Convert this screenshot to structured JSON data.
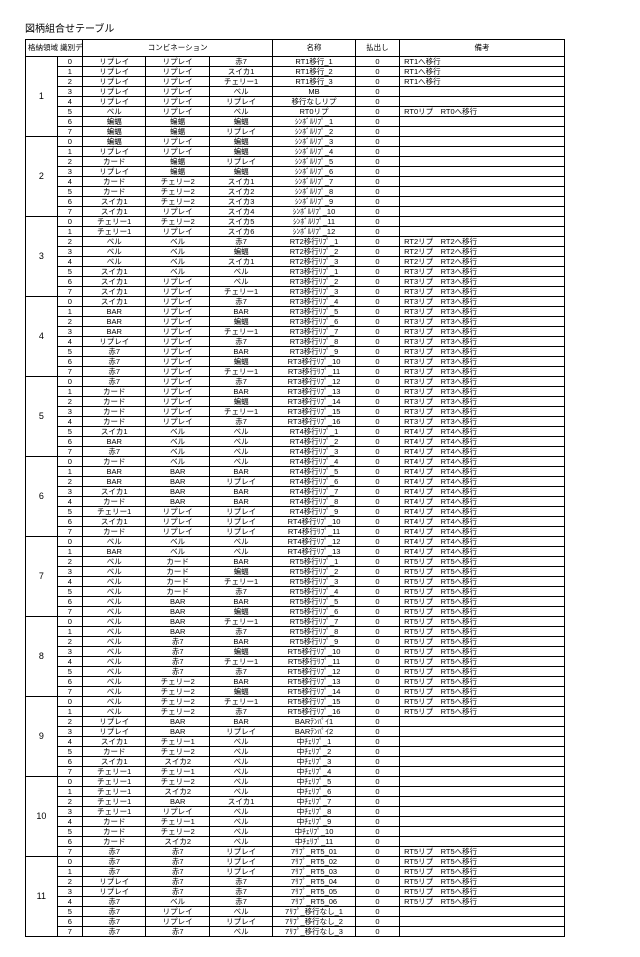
{
  "title": "図柄組合せテーブル",
  "headers": {
    "group": "格納領域\n識別データ",
    "combination": "コンビネーション",
    "name": "名称",
    "payout": "払出し",
    "remarks": "備考"
  },
  "groups": [
    {
      "id": "1",
      "rows": [
        {
          "i": "0",
          "c1": "リプレイ",
          "c2": "リプレイ",
          "c3": "赤7",
          "n": "RT1移行_1",
          "p": "0",
          "r": "RT1へ移行"
        },
        {
          "i": "1",
          "c1": "リプレイ",
          "c2": "リプレイ",
          "c3": "スイカ1",
          "n": "RT1移行_2",
          "p": "0",
          "r": "RT1へ移行"
        },
        {
          "i": "2",
          "c1": "リプレイ",
          "c2": "リプレイ",
          "c3": "チェリー1",
          "n": "RT1移行_3",
          "p": "0",
          "r": "RT1へ移行"
        },
        {
          "i": "3",
          "c1": "リプレイ",
          "c2": "リプレイ",
          "c3": "ベル",
          "n": "MB",
          "p": "0",
          "r": ""
        },
        {
          "i": "4",
          "c1": "リプレイ",
          "c2": "リプレイ",
          "c3": "リプレイ",
          "n": "移行なしリプ",
          "p": "0",
          "r": ""
        },
        {
          "i": "5",
          "c1": "ベル",
          "c2": "リプレイ",
          "c3": "ベル",
          "n": "RT0リプ",
          "p": "0",
          "r": "RT0リプ　RT0へ移行"
        },
        {
          "i": "6",
          "c1": "蝙蝠",
          "c2": "蝙蝠",
          "c3": "蝙蝠",
          "n": "ｼﾝﾎﾞﾙﾘﾌﾟ_1",
          "p": "0",
          "r": ""
        },
        {
          "i": "7",
          "c1": "蝙蝠",
          "c2": "蝙蝠",
          "c3": "リプレイ",
          "n": "ｼﾝﾎﾞﾙﾘﾌﾟ_2",
          "p": "0",
          "r": ""
        }
      ]
    },
    {
      "id": "2",
      "rows": [
        {
          "i": "0",
          "c1": "蝙蝠",
          "c2": "リプレイ",
          "c3": "蝙蝠",
          "n": "ｼﾝﾎﾞﾙﾘﾌﾟ_3",
          "p": "0",
          "r": ""
        },
        {
          "i": "1",
          "c1": "リプレイ",
          "c2": "リプレイ",
          "c3": "蝙蝠",
          "n": "ｼﾝﾎﾞﾙﾘﾌﾟ_4",
          "p": "0",
          "r": ""
        },
        {
          "i": "2",
          "c1": "カード",
          "c2": "蝙蝠",
          "c3": "リプレイ",
          "n": "ｼﾝﾎﾞﾙﾘﾌﾟ_5",
          "p": "0",
          "r": ""
        },
        {
          "i": "3",
          "c1": "リプレイ",
          "c2": "蝙蝠",
          "c3": "蝙蝠",
          "n": "ｼﾝﾎﾞﾙﾘﾌﾟ_6",
          "p": "0",
          "r": ""
        },
        {
          "i": "4",
          "c1": "カード",
          "c2": "チェリー2",
          "c3": "スイカ1",
          "n": "ｼﾝﾎﾞﾙﾘﾌﾟ_7",
          "p": "0",
          "r": ""
        },
        {
          "i": "5",
          "c1": "カード",
          "c2": "チェリー2",
          "c3": "スイカ2",
          "n": "ｼﾝﾎﾞﾙﾘﾌﾟ_8",
          "p": "0",
          "r": ""
        },
        {
          "i": "6",
          "c1": "スイカ1",
          "c2": "チェリー2",
          "c3": "スイカ3",
          "n": "ｼﾝﾎﾞﾙﾘﾌﾟ_9",
          "p": "0",
          "r": ""
        },
        {
          "i": "7",
          "c1": "スイカ1",
          "c2": "リプレイ",
          "c3": "スイカ4",
          "n": "ｼﾝﾎﾞﾙﾘﾌﾟ_10",
          "p": "0",
          "r": ""
        }
      ]
    },
    {
      "id": "3",
      "rows": [
        {
          "i": "0",
          "c1": "チェリー1",
          "c2": "チェリー2",
          "c3": "スイカ5",
          "n": "ｼﾝﾎﾞﾙﾘﾌﾟ_11",
          "p": "0",
          "r": ""
        },
        {
          "i": "1",
          "c1": "チェリー1",
          "c2": "リプレイ",
          "c3": "スイカ6",
          "n": "ｼﾝﾎﾞﾙﾘﾌﾟ_12",
          "p": "0",
          "r": ""
        },
        {
          "i": "2",
          "c1": "ベル",
          "c2": "ベル",
          "c3": "赤7",
          "n": "RT2移行ﾘﾌﾟ_1",
          "p": "0",
          "r": "RT2リプ　RT2へ移行"
        },
        {
          "i": "3",
          "c1": "ベル",
          "c2": "ベル",
          "c3": "蝙蝠",
          "n": "RT2移行ﾘﾌﾟ_2",
          "p": "0",
          "r": "RT2リプ　RT2へ移行"
        },
        {
          "i": "4",
          "c1": "ベル",
          "c2": "ベル",
          "c3": "スイカ1",
          "n": "RT2移行ﾘﾌﾟ_3",
          "p": "0",
          "r": "RT2リプ　RT2へ移行"
        },
        {
          "i": "5",
          "c1": "スイカ1",
          "c2": "ベル",
          "c3": "ベル",
          "n": "RT3移行ﾘﾌﾟ_1",
          "p": "0",
          "r": "RT3リプ　RT3へ移行"
        },
        {
          "i": "6",
          "c1": "スイカ1",
          "c2": "リプレイ",
          "c3": "ベル",
          "n": "RT3移行ﾘﾌﾟ_2",
          "p": "0",
          "r": "RT3リプ　RT3へ移行"
        },
        {
          "i": "7",
          "c1": "スイカ1",
          "c2": "リプレイ",
          "c3": "チェリー1",
          "n": "RT3移行ﾘﾌﾟ_3",
          "p": "0",
          "r": "RT3リプ　RT3へ移行"
        }
      ]
    },
    {
      "id": "4",
      "rows": [
        {
          "i": "0",
          "c1": "スイカ1",
          "c2": "リプレイ",
          "c3": "赤7",
          "n": "RT3移行ﾘﾌﾟ_4",
          "p": "0",
          "r": "RT3リプ　RT3へ移行"
        },
        {
          "i": "1",
          "c1": "BAR",
          "c2": "リプレイ",
          "c3": "BAR",
          "n": "RT3移行ﾘﾌﾟ_5",
          "p": "0",
          "r": "RT3リプ　RT3へ移行"
        },
        {
          "i": "2",
          "c1": "BAR",
          "c2": "リプレイ",
          "c3": "蝙蝠",
          "n": "RT3移行ﾘﾌﾟ_6",
          "p": "0",
          "r": "RT3リプ　RT3へ移行"
        },
        {
          "i": "3",
          "c1": "BAR",
          "c2": "リプレイ",
          "c3": "チェリー1",
          "n": "RT3移行ﾘﾌﾟ_7",
          "p": "0",
          "r": "RT3リプ　RT3へ移行"
        },
        {
          "i": "4",
          "c1": "リプレイ",
          "c2": "リプレイ",
          "c3": "赤7",
          "n": "RT3移行ﾘﾌﾟ_8",
          "p": "0",
          "r": "RT3リプ　RT3へ移行"
        },
        {
          "i": "5",
          "c1": "赤7",
          "c2": "リプレイ",
          "c3": "BAR",
          "n": "RT3移行ﾘﾌﾟ_9",
          "p": "0",
          "r": "RT3リプ　RT3へ移行"
        },
        {
          "i": "6",
          "c1": "赤7",
          "c2": "リプレイ",
          "c3": "蝙蝠",
          "n": "RT3移行ﾘﾌﾟ_10",
          "p": "0",
          "r": "RT3リプ　RT3へ移行"
        },
        {
          "i": "7",
          "c1": "赤7",
          "c2": "リプレイ",
          "c3": "チェリー1",
          "n": "RT3移行ﾘﾌﾟ_11",
          "p": "0",
          "r": "RT3リプ　RT3へ移行"
        }
      ]
    },
    {
      "id": "5",
      "rows": [
        {
          "i": "0",
          "c1": "赤7",
          "c2": "リプレイ",
          "c3": "赤7",
          "n": "RT3移行ﾘﾌﾟ_12",
          "p": "0",
          "r": "RT3リプ　RT3へ移行"
        },
        {
          "i": "1",
          "c1": "カード",
          "c2": "リプレイ",
          "c3": "BAR",
          "n": "RT3移行ﾘﾌﾟ_13",
          "p": "0",
          "r": "RT3リプ　RT3へ移行"
        },
        {
          "i": "2",
          "c1": "カード",
          "c2": "リプレイ",
          "c3": "蝙蝠",
          "n": "RT3移行ﾘﾌﾟ_14",
          "p": "0",
          "r": "RT3リプ　RT3へ移行"
        },
        {
          "i": "3",
          "c1": "カード",
          "c2": "リプレイ",
          "c3": "チェリー1",
          "n": "RT3移行ﾘﾌﾟ_15",
          "p": "0",
          "r": "RT3リプ　RT3へ移行"
        },
        {
          "i": "4",
          "c1": "カード",
          "c2": "リプレイ",
          "c3": "赤7",
          "n": "RT3移行ﾘﾌﾟ_16",
          "p": "0",
          "r": "RT3リプ　RT3へ移行"
        },
        {
          "i": "5",
          "c1": "スイカ1",
          "c2": "ベル",
          "c3": "ベル",
          "n": "RT4移行ﾘﾌﾟ_1",
          "p": "0",
          "r": "RT4リプ　RT4へ移行"
        },
        {
          "i": "6",
          "c1": "BAR",
          "c2": "ベル",
          "c3": "ベル",
          "n": "RT4移行ﾘﾌﾟ_2",
          "p": "0",
          "r": "RT4リプ　RT4へ移行"
        },
        {
          "i": "7",
          "c1": "赤7",
          "c2": "ベル",
          "c3": "ベル",
          "n": "RT4移行ﾘﾌﾟ_3",
          "p": "0",
          "r": "RT4リプ　RT4へ移行"
        }
      ]
    },
    {
      "id": "6",
      "rows": [
        {
          "i": "0",
          "c1": "カード",
          "c2": "ベル",
          "c3": "ベル",
          "n": "RT4移行ﾘﾌﾟ_4",
          "p": "0",
          "r": "RT4リプ　RT4へ移行"
        },
        {
          "i": "1",
          "c1": "BAR",
          "c2": "BAR",
          "c3": "BAR",
          "n": "RT4移行ﾘﾌﾟ_5",
          "p": "0",
          "r": "RT4リプ　RT4へ移行"
        },
        {
          "i": "2",
          "c1": "BAR",
          "c2": "BAR",
          "c3": "リプレイ",
          "n": "RT4移行ﾘﾌﾟ_6",
          "p": "0",
          "r": "RT4リプ　RT4へ移行"
        },
        {
          "i": "3",
          "c1": "スイカ1",
          "c2": "BAR",
          "c3": "BAR",
          "n": "RT4移行ﾘﾌﾟ_7",
          "p": "0",
          "r": "RT4リプ　RT4へ移行"
        },
        {
          "i": "4",
          "c1": "カード",
          "c2": "BAR",
          "c3": "BAR",
          "n": "RT4移行ﾘﾌﾟ_8",
          "p": "0",
          "r": "RT4リプ　RT4へ移行"
        },
        {
          "i": "5",
          "c1": "チェリー1",
          "c2": "リプレイ",
          "c3": "リプレイ",
          "n": "RT4移行ﾘﾌﾟ_9",
          "p": "0",
          "r": "RT4リプ　RT4へ移行"
        },
        {
          "i": "6",
          "c1": "スイカ1",
          "c2": "リプレイ",
          "c3": "リプレイ",
          "n": "RT4移行ﾘﾌﾟ_10",
          "p": "0",
          "r": "RT4リプ　RT4へ移行"
        },
        {
          "i": "7",
          "c1": "カード",
          "c2": "リプレイ",
          "c3": "リプレイ",
          "n": "RT4移行ﾘﾌﾟ_11",
          "p": "0",
          "r": "RT4リプ　RT4へ移行"
        }
      ]
    },
    {
      "id": "7",
      "rows": [
        {
          "i": "0",
          "c1": "ベル",
          "c2": "ベル",
          "c3": "ベル",
          "n": "RT4移行ﾘﾌﾟ_12",
          "p": "0",
          "r": "RT4リプ　RT4へ移行"
        },
        {
          "i": "1",
          "c1": "BAR",
          "c2": "ベル",
          "c3": "ベル",
          "n": "RT4移行ﾘﾌﾟ_13",
          "p": "0",
          "r": "RT4リプ　RT4へ移行"
        },
        {
          "i": "2",
          "c1": "ベル",
          "c2": "カード",
          "c3": "BAR",
          "n": "RT5移行ﾘﾌﾟ_1",
          "p": "0",
          "r": "RT5リプ　RT5へ移行"
        },
        {
          "i": "3",
          "c1": "ベル",
          "c2": "カード",
          "c3": "蝙蝠",
          "n": "RT5移行ﾘﾌﾟ_2",
          "p": "0",
          "r": "RT5リプ　RT5へ移行"
        },
        {
          "i": "4",
          "c1": "ベル",
          "c2": "カード",
          "c3": "チェリー1",
          "n": "RT5移行ﾘﾌﾟ_3",
          "p": "0",
          "r": "RT5リプ　RT5へ移行"
        },
        {
          "i": "5",
          "c1": "ベル",
          "c2": "カード",
          "c3": "赤7",
          "n": "RT5移行ﾘﾌﾟ_4",
          "p": "0",
          "r": "RT5リプ　RT5へ移行"
        },
        {
          "i": "6",
          "c1": "ベル",
          "c2": "BAR",
          "c3": "BAR",
          "n": "RT5移行ﾘﾌﾟ_5",
          "p": "0",
          "r": "RT5リプ　RT5へ移行"
        },
        {
          "i": "7",
          "c1": "ベル",
          "c2": "BAR",
          "c3": "蝙蝠",
          "n": "RT5移行ﾘﾌﾟ_6",
          "p": "0",
          "r": "RT5リプ　RT5へ移行"
        }
      ]
    },
    {
      "id": "8",
      "rows": [
        {
          "i": "0",
          "c1": "ベル",
          "c2": "BAR",
          "c3": "チェリー1",
          "n": "RT5移行ﾘﾌﾟ_7",
          "p": "0",
          "r": "RT5リプ　RT5へ移行"
        },
        {
          "i": "1",
          "c1": "ベル",
          "c2": "BAR",
          "c3": "赤7",
          "n": "RT5移行ﾘﾌﾟ_8",
          "p": "0",
          "r": "RT5リプ　RT5へ移行"
        },
        {
          "i": "2",
          "c1": "ベル",
          "c2": "赤7",
          "c3": "BAR",
          "n": "RT5移行ﾘﾌﾟ_9",
          "p": "0",
          "r": "RT5リプ　RT5へ移行"
        },
        {
          "i": "3",
          "c1": "ベル",
          "c2": "赤7",
          "c3": "蝙蝠",
          "n": "RT5移行ﾘﾌﾟ_10",
          "p": "0",
          "r": "RT5リプ　RT5へ移行"
        },
        {
          "i": "4",
          "c1": "ベル",
          "c2": "赤7",
          "c3": "チェリー1",
          "n": "RT5移行ﾘﾌﾟ_11",
          "p": "0",
          "r": "RT5リプ　RT5へ移行"
        },
        {
          "i": "5",
          "c1": "ベル",
          "c2": "赤7",
          "c3": "赤7",
          "n": "RT5移行ﾘﾌﾟ_12",
          "p": "0",
          "r": "RT5リプ　RT5へ移行"
        },
        {
          "i": "6",
          "c1": "ベル",
          "c2": "チェリー2",
          "c3": "BAR",
          "n": "RT5移行ﾘﾌﾟ_13",
          "p": "0",
          "r": "RT5リプ　RT5へ移行"
        },
        {
          "i": "7",
          "c1": "ベル",
          "c2": "チェリー2",
          "c3": "蝙蝠",
          "n": "RT5移行ﾘﾌﾟ_14",
          "p": "0",
          "r": "RT5リプ　RT5へ移行"
        }
      ]
    },
    {
      "id": "9",
      "rows": [
        {
          "i": "0",
          "c1": "ベル",
          "c2": "チェリー2",
          "c3": "チェリー1",
          "n": "RT5移行ﾘﾌﾟ_15",
          "p": "0",
          "r": "RT5リプ　RT5へ移行"
        },
        {
          "i": "1",
          "c1": "ベル",
          "c2": "チェリー2",
          "c3": "赤7",
          "n": "RT5移行ﾘﾌﾟ_16",
          "p": "0",
          "r": "RT5リプ　RT5へ移行"
        },
        {
          "i": "2",
          "c1": "リプレイ",
          "c2": "BAR",
          "c3": "BAR",
          "n": "BARﾃﾝﾊﾟｲ1",
          "p": "0",
          "r": ""
        },
        {
          "i": "3",
          "c1": "リプレイ",
          "c2": "BAR",
          "c3": "リプレイ",
          "n": "BARﾃﾝﾊﾟｲ2",
          "p": "0",
          "r": ""
        },
        {
          "i": "4",
          "c1": "スイカ1",
          "c2": "チェリー1",
          "c3": "ベル",
          "n": "中ﾁｪﾘﾌﾟ_1",
          "p": "0",
          "r": ""
        },
        {
          "i": "5",
          "c1": "カード",
          "c2": "チェリー2",
          "c3": "ベル",
          "n": "中ﾁｪﾘﾌﾟ_2",
          "p": "0",
          "r": ""
        },
        {
          "i": "6",
          "c1": "スイカ1",
          "c2": "スイカ2",
          "c3": "ベル",
          "n": "中ﾁｪﾘﾌﾟ_3",
          "p": "0",
          "r": ""
        },
        {
          "i": "7",
          "c1": "チェリー1",
          "c2": "チェリー1",
          "c3": "ベル",
          "n": "中ﾁｪﾘﾌﾟ_4",
          "p": "0",
          "r": ""
        }
      ]
    },
    {
      "id": "10",
      "rows": [
        {
          "i": "0",
          "c1": "チェリー1",
          "c2": "チェリー2",
          "c3": "ベル",
          "n": "中ﾁｪﾘﾌﾟ_5",
          "p": "0",
          "r": ""
        },
        {
          "i": "1",
          "c1": "チェリー1",
          "c2": "スイカ2",
          "c3": "ベル",
          "n": "中ﾁｪﾘﾌﾟ_6",
          "p": "0",
          "r": ""
        },
        {
          "i": "2",
          "c1": "チェリー1",
          "c2": "BAR",
          "c3": "スイカ1",
          "n": "中ﾁｪﾘﾌﾟ_7",
          "p": "0",
          "r": ""
        },
        {
          "i": "3",
          "c1": "チェリー1",
          "c2": "リプレイ",
          "c3": "ベル",
          "n": "中ﾁｪﾘﾌﾟ_8",
          "p": "0",
          "r": ""
        },
        {
          "i": "4",
          "c1": "カード",
          "c2": "チェリー1",
          "c3": "ベル",
          "n": "中ﾁｪﾘﾌﾟ_9",
          "p": "0",
          "r": ""
        },
        {
          "i": "5",
          "c1": "カード",
          "c2": "チェリー2",
          "c3": "ベル",
          "n": "中ﾁｪﾘﾌﾟ_10",
          "p": "0",
          "r": ""
        },
        {
          "i": "6",
          "c1": "カード",
          "c2": "スイカ2",
          "c3": "ベル",
          "n": "中ﾁｪﾘﾌﾟ_11",
          "p": "0",
          "r": ""
        },
        {
          "i": "7",
          "c1": "赤7",
          "c2": "赤7",
          "c3": "リプレイ",
          "n": "7ﾘﾌﾟ_RT5_01",
          "p": "0",
          "r": "RT5リプ　RT5へ移行"
        }
      ]
    },
    {
      "id": "11",
      "rows": [
        {
          "i": "0",
          "c1": "赤7",
          "c2": "赤7",
          "c3": "リプレイ",
          "n": "7ﾘﾌﾟ_RT5_02",
          "p": "0",
          "r": "RT5リプ　RT5へ移行"
        },
        {
          "i": "1",
          "c1": "赤7",
          "c2": "赤7",
          "c3": "リプレイ",
          "n": "7ﾘﾌﾟ_RT5_03",
          "p": "0",
          "r": "RT5リプ　RT5へ移行"
        },
        {
          "i": "2",
          "c1": "リプレイ",
          "c2": "赤7",
          "c3": "赤7",
          "n": "7ﾘﾌﾟ_RT5_04",
          "p": "0",
          "r": "RT5リプ　RT5へ移行"
        },
        {
          "i": "3",
          "c1": "リプレイ",
          "c2": "赤7",
          "c3": "赤7",
          "n": "7ﾘﾌﾟ_RT5_05",
          "p": "0",
          "r": "RT5リプ　RT5へ移行"
        },
        {
          "i": "4",
          "c1": "赤7",
          "c2": "ベル",
          "c3": "赤7",
          "n": "7ﾘﾌﾟ_RT5_06",
          "p": "0",
          "r": "RT5リプ　RT5へ移行"
        },
        {
          "i": "5",
          "c1": "赤7",
          "c2": "リプレイ",
          "c3": "ベル",
          "n": "7ﾘﾌﾟ_移行なし_1",
          "p": "0",
          "r": ""
        },
        {
          "i": "6",
          "c1": "赤7",
          "c2": "リプレイ",
          "c3": "リプレイ",
          "n": "7ﾘﾌﾟ_移行なし_2",
          "p": "0",
          "r": ""
        },
        {
          "i": "7",
          "c1": "赤7",
          "c2": "赤7",
          "c3": "ベル",
          "n": "7ﾘﾌﾟ_移行なし_3",
          "p": "0",
          "r": ""
        }
      ]
    }
  ]
}
